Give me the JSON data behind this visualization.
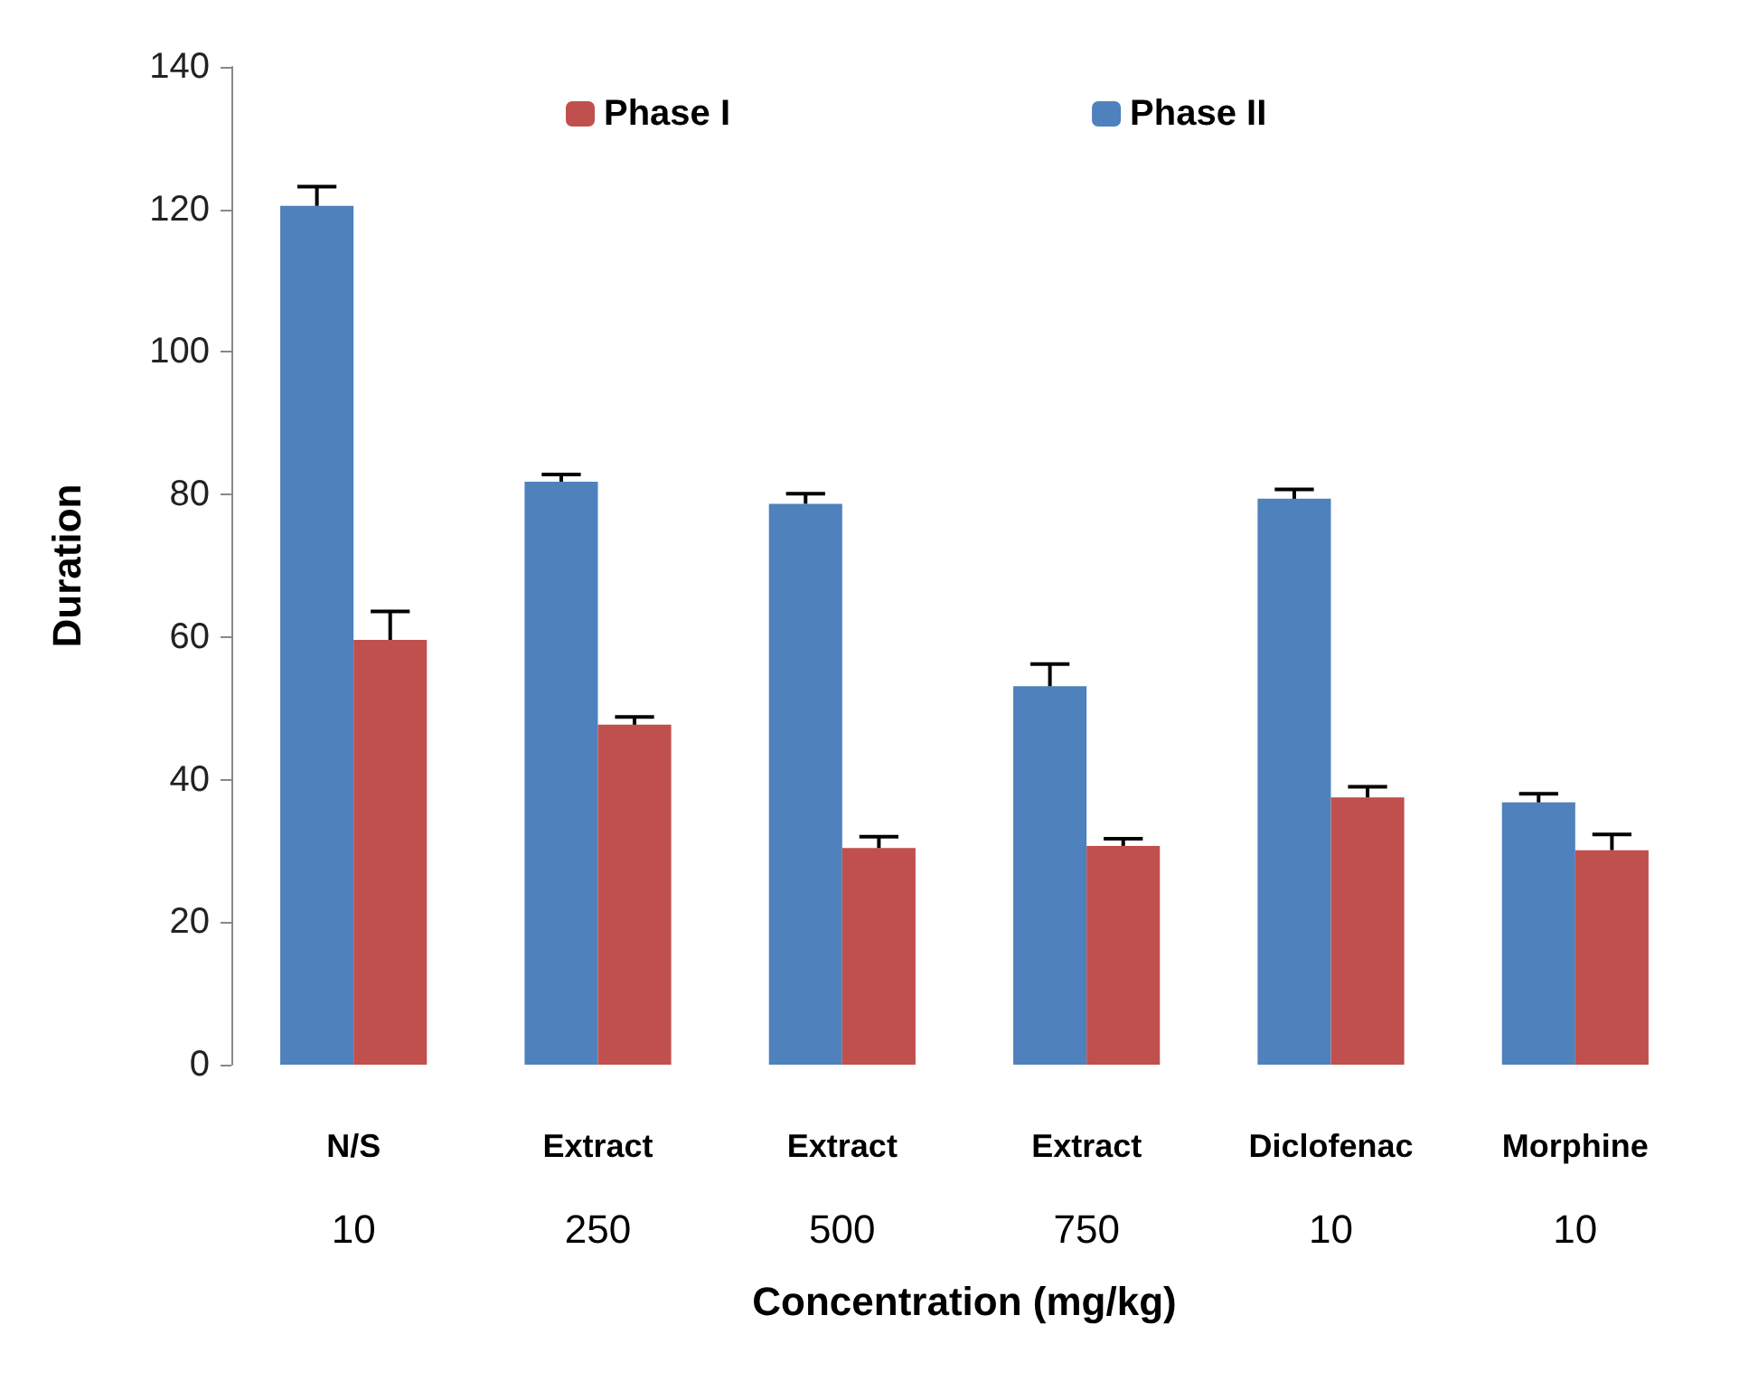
{
  "chart_data": {
    "type": "bar",
    "xlabel": "Concentration (mg/kg)",
    "ylabel": "Duration",
    "categories": [
      "N/S\n10",
      "Extract\n250",
      "Extract\n500",
      "Extract\n750",
      "Diclofenac\n10",
      "Morphine\n10"
    ],
    "series": [
      {
        "name": "Phase II",
        "color": "#4f81bd",
        "values": [
          120.5,
          81.8,
          78.7,
          53.1,
          79.4,
          36.8
        ],
        "errors": [
          [
            120.5,
            123.2
          ],
          [
            81.8,
            82.8
          ],
          [
            78.7,
            80.1
          ],
          [
            53.1,
            56.2
          ],
          [
            79.4,
            80.7
          ],
          [
            36.8,
            38
          ]
        ]
      },
      {
        "name": "Phase I",
        "color": "#c0504d",
        "values": [
          59.6,
          47.7,
          30.4,
          30.7,
          37.5,
          30.1
        ],
        "errors": [
          [
            59.6,
            63.6
          ],
          [
            47.7,
            48.8
          ],
          [
            30.4,
            32
          ],
          [
            30.7,
            31.7
          ],
          [
            37.5,
            39
          ],
          [
            30.1,
            32.3
          ]
        ]
      }
    ],
    "ylim": [
      0,
      140
    ],
    "yticks": [
      0,
      20,
      40,
      60,
      80,
      100,
      120,
      140
    ],
    "grid": false,
    "legend": "top"
  }
}
